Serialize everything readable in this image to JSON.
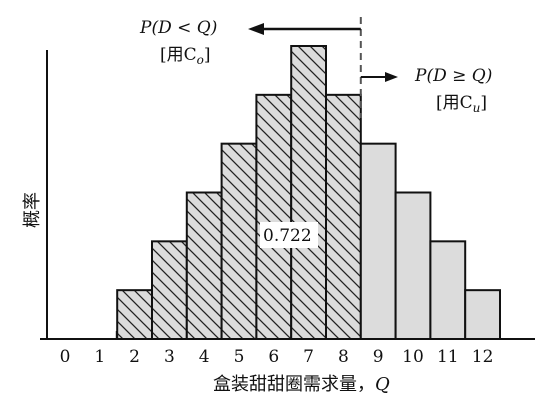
{
  "chart_data": {
    "type": "bar",
    "title": "",
    "xlabel": "盒装甜甜圈需求量，",
    "xlabel_var": "Q",
    "ylabel": "概率",
    "categories": [
      "0",
      "1",
      "2",
      "3",
      "4",
      "5",
      "6",
      "7",
      "8",
      "9",
      "10",
      "11",
      "12"
    ],
    "values": [
      0,
      0.01,
      0.05,
      0.1,
      0.15,
      0.2,
      0.25,
      0.3,
      0.25,
      0.2,
      0.15,
      0.1,
      0.05
    ],
    "hatched_categories": [
      "2",
      "3",
      "4",
      "5",
      "6",
      "7",
      "8"
    ],
    "cutoff_after": "8",
    "center_label": "0.722",
    "annotation_left": {
      "formula": "P(D < Q)",
      "sub": "[用C",
      "sub_sub": "o",
      "sub_end": "]"
    },
    "annotation_right": {
      "formula": "P(D ≥ Q)",
      "sub": "[用C",
      "sub_sub": "u",
      "sub_end": "]"
    },
    "colors": {
      "bar_fill": "#dcdcdc",
      "stroke": "#111111",
      "hatch": "#222222"
    }
  }
}
